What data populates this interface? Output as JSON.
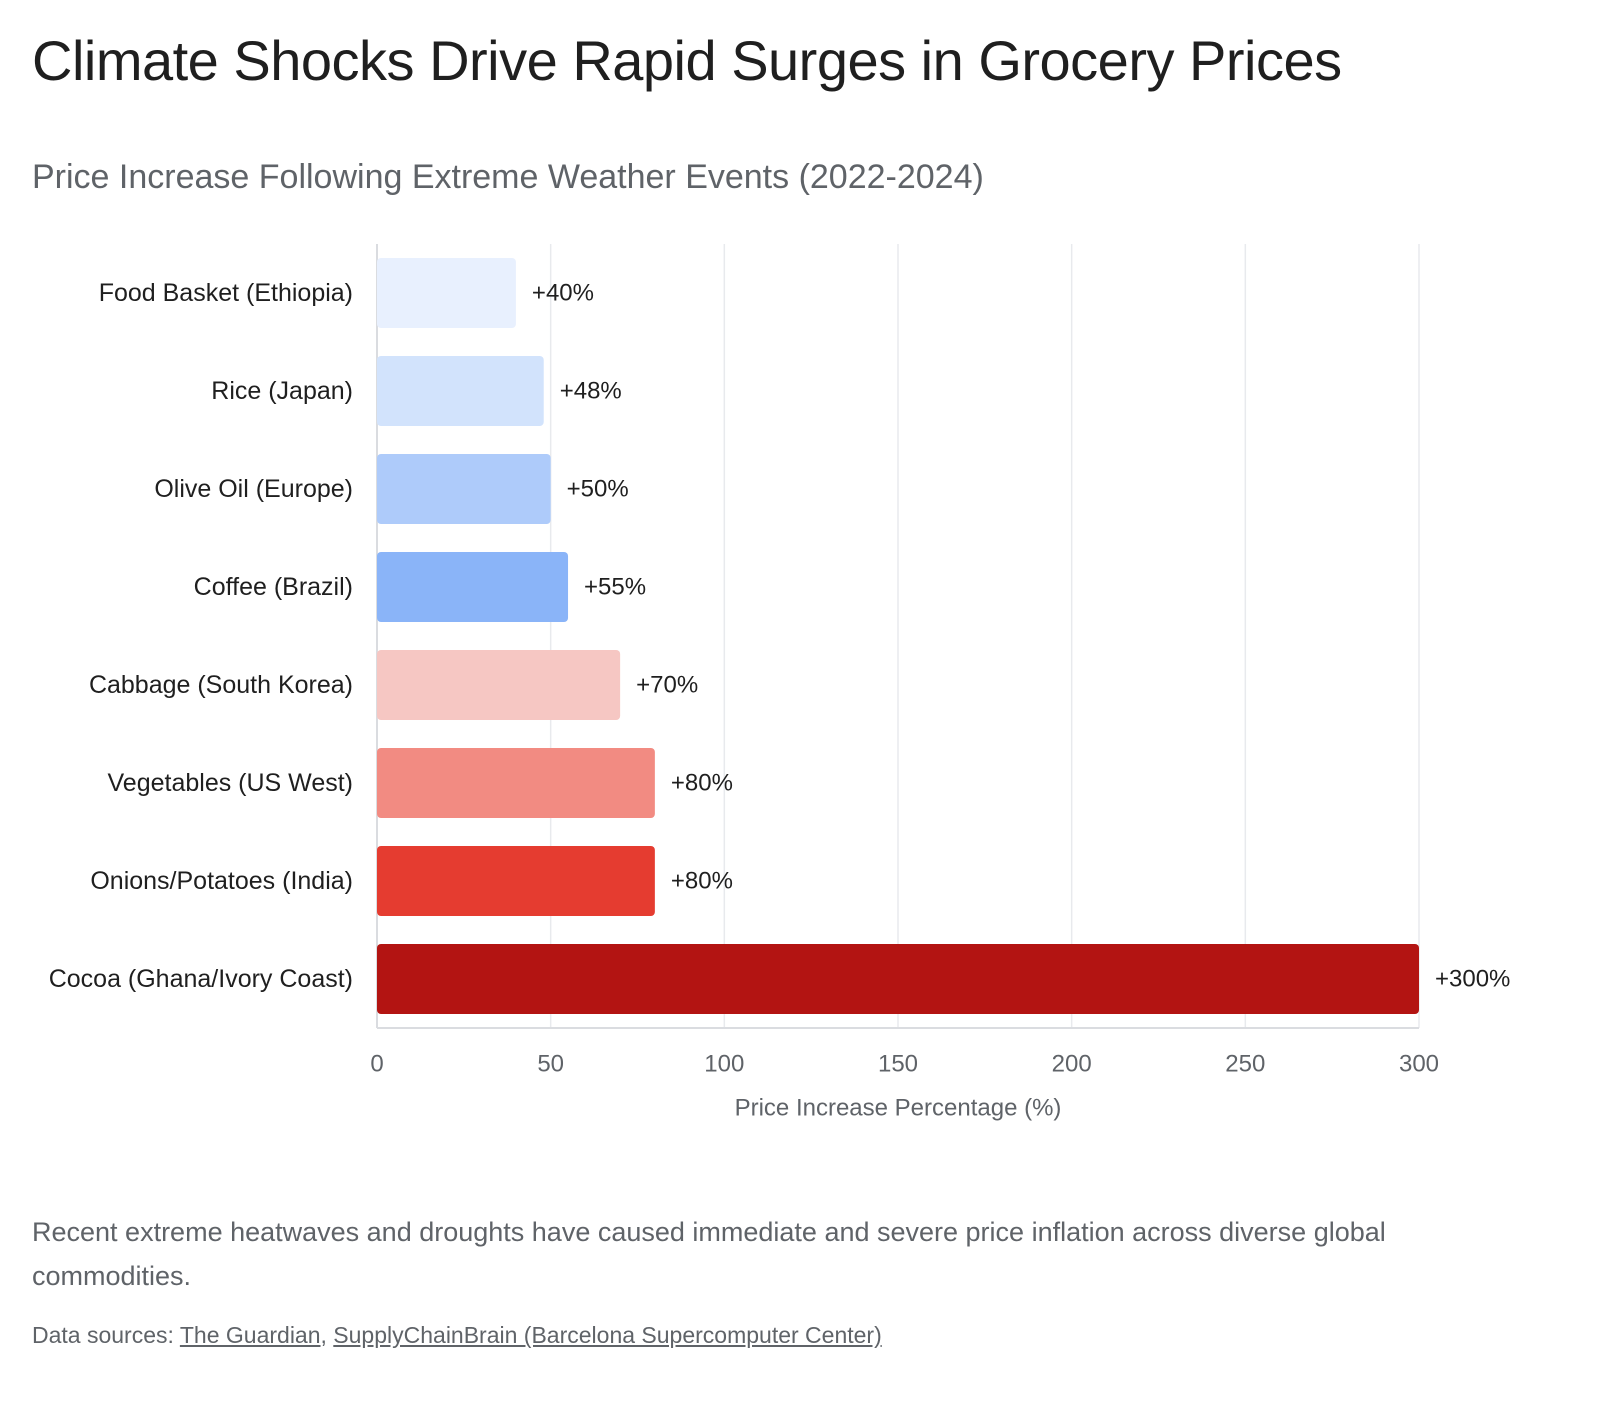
{
  "header": {
    "title": "Climate Shocks Drive Rapid Surges in Grocery Prices",
    "subtitle": "Price Increase Following Extreme Weather Events (2022-2024)"
  },
  "chart_data": {
    "type": "bar",
    "orientation": "horizontal",
    "categories": [
      "Food Basket (Ethiopia)",
      "Rice (Japan)",
      "Olive Oil (Europe)",
      "Coffee (Brazil)",
      "Cabbage (South Korea)",
      "Vegetables (US West)",
      "Onions/Potatoes (India)",
      "Cocoa (Ghana/Ivory Coast)"
    ],
    "values": [
      40,
      48,
      50,
      55,
      70,
      80,
      80,
      300
    ],
    "data_labels": [
      "+40%",
      "+48%",
      "+50%",
      "+55%",
      "+70%",
      "+80%",
      "+80%",
      "+300%"
    ],
    "colors": [
      "#e8f0fe",
      "#d2e3fc",
      "#aecbfa",
      "#8ab4f8",
      "#f6c7c3",
      "#f28b82",
      "#e53c30",
      "#b31412"
    ],
    "xlabel": "Price Increase Percentage (%)",
    "ylabel": "",
    "xlim": [
      0,
      300
    ],
    "xticks": [
      "0",
      "50",
      "100",
      "150",
      "200",
      "250",
      "300"
    ],
    "grid": true,
    "legend": "none"
  },
  "footer": {
    "description": "Recent extreme heatwaves and droughts have caused immediate and severe price inflation across diverse global commodities.",
    "sources_prefix": "Data sources: ",
    "source_1": "The Guardian",
    "separator": ", ",
    "source_2": "SupplyChainBrain (Barcelona Supercomputer Center)"
  }
}
